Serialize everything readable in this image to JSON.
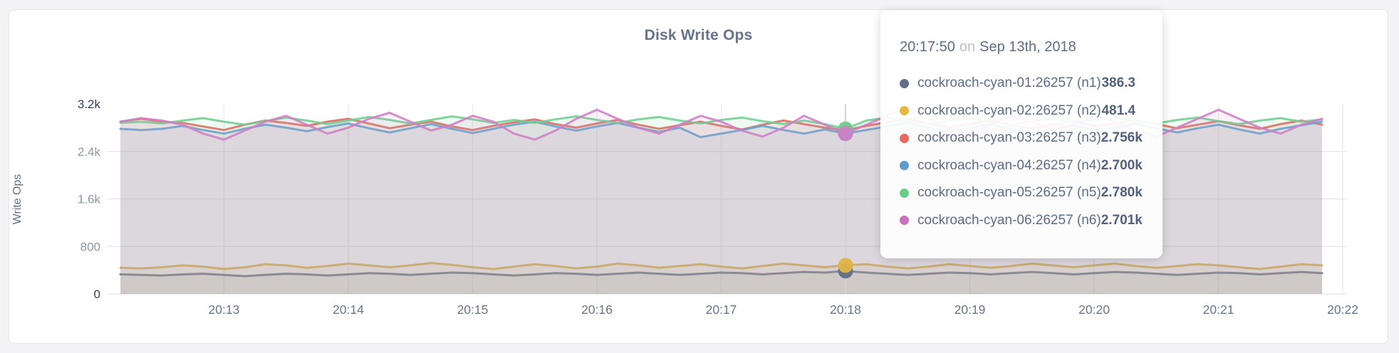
{
  "chart_data": {
    "type": "line",
    "title": "Disk Write Ops",
    "ylabel": "Write Ops",
    "grid": true,
    "legend_position": "tooltip-only",
    "x_axis": {
      "start_time": "20:12:10",
      "end_time": "20:21:50",
      "step_sec": 10,
      "tick_labels": [
        "20:13",
        "20:14",
        "20:15",
        "20:16",
        "20:17",
        "20:18",
        "20:19",
        "20:20",
        "20:21",
        "20:22"
      ]
    },
    "y_axis": {
      "min": 0,
      "max": 3200,
      "ticks": [
        0,
        800,
        1600,
        2400,
        3200
      ],
      "tick_labels": [
        "0",
        "800",
        "1.6k",
        "2.4k",
        "3.2k"
      ]
    },
    "hover_index": 35,
    "series": [
      {
        "name": "cockroach-cyan-01:26257 (n1)",
        "color": "#626f88",
        "values": [
          330,
          320,
          310,
          330,
          340,
          320,
          300,
          320,
          340,
          330,
          310,
          330,
          350,
          340,
          320,
          340,
          360,
          350,
          330,
          310,
          330,
          350,
          340,
          320,
          340,
          360,
          340,
          320,
          340,
          360,
          350,
          330,
          350,
          370,
          360,
          386.3,
          360,
          340,
          320,
          340,
          360,
          350,
          330,
          350,
          370,
          350,
          330,
          350,
          370,
          360,
          340,
          320,
          340,
          360,
          350,
          330,
          350,
          370,
          350
        ]
      },
      {
        "name": "cockroach-cyan-02:26257 (n2)",
        "color": "#e0b344",
        "values": [
          440,
          430,
          450,
          480,
          460,
          420,
          450,
          500,
          480,
          440,
          470,
          510,
          480,
          450,
          480,
          520,
          490,
          450,
          420,
          460,
          500,
          470,
          430,
          460,
          510,
          480,
          440,
          470,
          500,
          460,
          430,
          470,
          510,
          480,
          450,
          481.4,
          500,
          460,
          430,
          460,
          500,
          470,
          440,
          470,
          510,
          480,
          450,
          480,
          510,
          470,
          440,
          470,
          500,
          480,
          450,
          420,
          460,
          500,
          480
        ]
      },
      {
        "name": "cockroach-cyan-03:26257 (n3)",
        "color": "#e0685f",
        "values": [
          2900,
          2950,
          2900,
          2880,
          2820,
          2760,
          2850,
          2920,
          2880,
          2830,
          2900,
          2950,
          2870,
          2790,
          2850,
          2900,
          2820,
          2760,
          2830,
          2890,
          2940,
          2860,
          2800,
          2870,
          2930,
          2850,
          2780,
          2840,
          2900,
          2830,
          2770,
          2850,
          2920,
          2860,
          2800,
          2756,
          2830,
          2890,
          2950,
          2870,
          2800,
          2860,
          2920,
          2840,
          2780,
          2850,
          2910,
          2830,
          2870,
          2930,
          2860,
          2790,
          2850,
          2910,
          2840,
          2780,
          2860,
          2920,
          2850
        ]
      },
      {
        "name": "cockroach-cyan-04:26257 (n4)",
        "color": "#689cd2",
        "values": [
          2780,
          2760,
          2780,
          2830,
          2760,
          2700,
          2780,
          2850,
          2800,
          2740,
          2810,
          2870,
          2790,
          2720,
          2790,
          2860,
          2780,
          2710,
          2780,
          2850,
          2900,
          2820,
          2750,
          2820,
          2880,
          2800,
          2730,
          2800,
          2640,
          2700,
          2760,
          2830,
          2760,
          2700,
          2770,
          2700,
          2760,
          2820,
          2880,
          2800,
          2730,
          2800,
          2860,
          2780,
          2710,
          2780,
          2840,
          2760,
          2800,
          2870,
          2790,
          2720,
          2790,
          2850,
          2770,
          2700,
          2780,
          2840,
          2900
        ]
      },
      {
        "name": "cockroach-cyan-05:26257 (n5)",
        "color": "#71ce92",
        "values": [
          2880,
          2900,
          2870,
          2920,
          2960,
          2900,
          2850,
          2910,
          2970,
          2920,
          2860,
          2920,
          2980,
          2930,
          2870,
          2930,
          2990,
          2940,
          2880,
          2930,
          2880,
          2940,
          2990,
          2930,
          2880,
          2940,
          2980,
          2920,
          2870,
          2930,
          2970,
          2910,
          2860,
          2920,
          2860,
          2780,
          2920,
          2970,
          2910,
          2860,
          2920,
          2960,
          2900,
          2850,
          2910,
          2950,
          2890,
          2930,
          2980,
          2920,
          2870,
          2930,
          2970,
          2910,
          2860,
          2920,
          2960,
          2900,
          2940
        ]
      },
      {
        "name": "cockroach-cyan-06:26257 (n6)",
        "color": "#cf7ec4",
        "values": [
          2900,
          2960,
          2920,
          2850,
          2700,
          2600,
          2750,
          2900,
          3000,
          2850,
          2700,
          2800,
          2950,
          3050,
          2900,
          2750,
          2850,
          3000,
          2900,
          2700,
          2600,
          2750,
          2950,
          3100,
          2950,
          2800,
          2700,
          2850,
          3000,
          2900,
          2750,
          2650,
          2800,
          3000,
          2850,
          2701,
          2850,
          3000,
          3150,
          2950,
          2800,
          2700,
          2850,
          3000,
          2900,
          2750,
          2850,
          3000,
          2900,
          2750,
          2650,
          2800,
          2950,
          3100,
          2950,
          2800,
          2700,
          2850,
          2950
        ]
      }
    ]
  },
  "tooltip": {
    "time": "20:17:50",
    "separator": "on",
    "date": "Sep 13th, 2018",
    "rows": [
      {
        "label": "cockroach-cyan-01:26257 (n1)",
        "value": "386.3",
        "color": "#626f88"
      },
      {
        "label": "cockroach-cyan-02:26257 (n2)",
        "value": "481.4",
        "color": "#e7b63e"
      },
      {
        "label": "cockroach-cyan-03:26257 (n3)",
        "value": "2.756k",
        "color": "#e66a5e"
      },
      {
        "label": "cockroach-cyan-04:26257 (n4)",
        "value": "2.700k",
        "color": "#5b9bd1"
      },
      {
        "label": "cockroach-cyan-05:26257 (n5)",
        "value": "2.780k",
        "color": "#67cf87"
      },
      {
        "label": "cockroach-cyan-06:26257 (n6)",
        "value": "2.701k",
        "color": "#cc70bd"
      }
    ]
  }
}
